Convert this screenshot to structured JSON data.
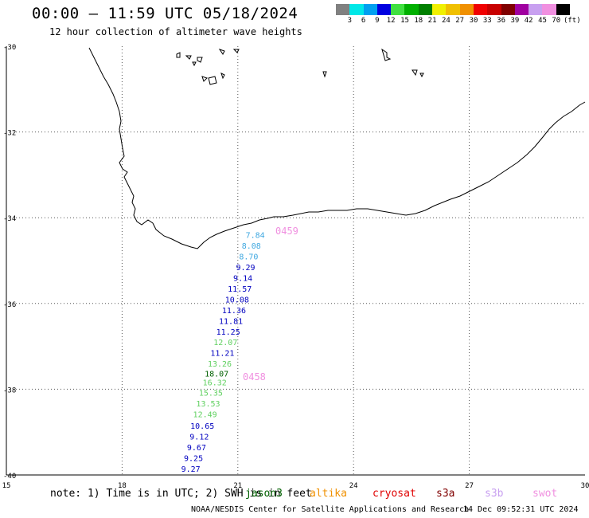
{
  "header": {
    "title": "00:00 – 11:59 UTC 05/18/2024",
    "subtitle": "12 hour collection of altimeter wave heights"
  },
  "legend": {
    "labels": [
      "3",
      "6",
      "9",
      "12",
      "15",
      "18",
      "21",
      "24",
      "27",
      "30",
      "33",
      "36",
      "39",
      "42",
      "45",
      "70"
    ],
    "unit": "(ft)",
    "colors": [
      "#808080",
      "#00e8e8",
      "#00a0f0",
      "#0000e0",
      "#40e040",
      "#00b000",
      "#008000",
      "#f0f000",
      "#f0c000",
      "#f09000",
      "#f00000",
      "#c80000",
      "#800000",
      "#a000a0",
      "#c8a0f0",
      "#f090e0",
      "#000000"
    ]
  },
  "axes": {
    "lat_ticks": [
      "-30",
      "-32",
      "-34",
      "-36",
      "-38",
      "-40"
    ],
    "lon_ticks": [
      "15",
      "18",
      "21",
      "24",
      "27",
      "30"
    ]
  },
  "passes": [
    {
      "label": "0459",
      "color": "#f090e0"
    },
    {
      "label": "0458",
      "color": "#f090e0"
    }
  ],
  "track": [
    {
      "value": "7.84",
      "lon": 21.45,
      "lat": -34.4,
      "color": "#40a8e0"
    },
    {
      "value": "8.08",
      "lon": 21.35,
      "lat": -34.65,
      "color": "#40a8e0"
    },
    {
      "value": "8.70",
      "lon": 21.28,
      "lat": -34.9,
      "color": "#40a8e0"
    },
    {
      "value": "9.29",
      "lon": 21.2,
      "lat": -35.15,
      "color": "#0000c0"
    },
    {
      "value": "9.14",
      "lon": 21.13,
      "lat": -35.4,
      "color": "#0000c0"
    },
    {
      "value": "11.57",
      "lon": 21.05,
      "lat": -35.65,
      "color": "#0000c0"
    },
    {
      "value": "10.08",
      "lon": 20.98,
      "lat": -35.9,
      "color": "#0000c0"
    },
    {
      "value": "11.36",
      "lon": 20.9,
      "lat": -36.15,
      "color": "#0000c0"
    },
    {
      "value": "11.81",
      "lon": 20.82,
      "lat": -36.4,
      "color": "#0000c0"
    },
    {
      "value": "11.25",
      "lon": 20.75,
      "lat": -36.65,
      "color": "#0000c0"
    },
    {
      "value": "12.07",
      "lon": 20.68,
      "lat": -36.9,
      "color": "#60d060"
    },
    {
      "value": "11.21",
      "lon": 20.6,
      "lat": -37.15,
      "color": "#0000c0"
    },
    {
      "value": "13.26",
      "lon": 20.53,
      "lat": -37.4,
      "color": "#60d060"
    },
    {
      "value": "18.07",
      "lon": 20.45,
      "lat": -37.63,
      "color": "#006000"
    },
    {
      "value": "16.32",
      "lon": 20.4,
      "lat": -37.83,
      "color": "#60d060"
    },
    {
      "value": "15.35",
      "lon": 20.3,
      "lat": -38.08,
      "color": "#60d060"
    },
    {
      "value": "13.53",
      "lon": 20.23,
      "lat": -38.33,
      "color": "#60d060"
    },
    {
      "value": "12.49",
      "lon": 20.15,
      "lat": -38.58,
      "color": "#60d060"
    },
    {
      "value": "10.65",
      "lon": 20.08,
      "lat": -38.85,
      "color": "#0000c0"
    },
    {
      "value": "9.12",
      "lon": 20.0,
      "lat": -39.1,
      "color": "#0000c0"
    },
    {
      "value": "9.67",
      "lon": 19.93,
      "lat": -39.35,
      "color": "#0000c0"
    },
    {
      "value": "9.25",
      "lon": 19.85,
      "lat": -39.6,
      "color": "#0000c0"
    },
    {
      "value": "9.27",
      "lon": 19.78,
      "lat": -39.85,
      "color": "#0000c0"
    }
  ],
  "footer": {
    "note": "note: 1) Time is in UTC; 2) SWH is in feet",
    "satellites": [
      {
        "name": "jason3",
        "color": "#006000"
      },
      {
        "name": "altika",
        "color": "#f09000"
      },
      {
        "name": "cryosat",
        "color": "#e00000"
      },
      {
        "name": "s3a",
        "color": "#800000"
      },
      {
        "name": "s3b",
        "color": "#c8a0f0"
      },
      {
        "name": "swot",
        "color": "#f090e0"
      }
    ],
    "credit": "NOAA/NESDIS Center for Satellite Applications and Research",
    "timestamp": "14 Dec 09:52:31 UTC 2024"
  }
}
